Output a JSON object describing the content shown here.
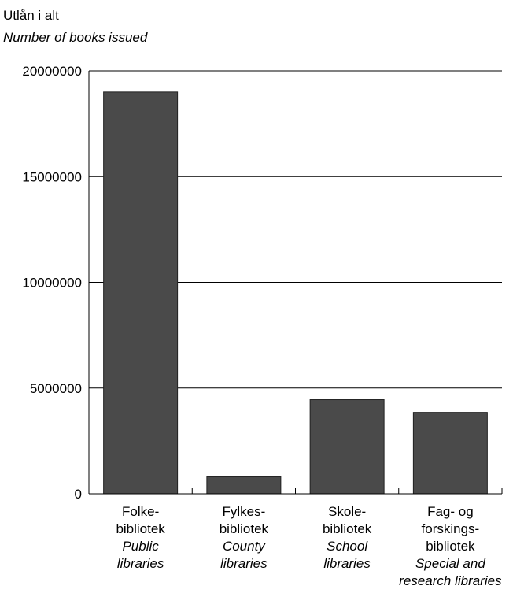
{
  "chart_data": {
    "type": "bar",
    "title_lines": [
      "Utlån i alt",
      "Number of books issued"
    ],
    "categories": [
      {
        "lines": [
          "Folke-",
          "bibliotek"
        ],
        "italic_lines": [
          "Public",
          "libraries"
        ]
      },
      {
        "lines": [
          "Fylkes-",
          "bibliotek"
        ],
        "italic_lines": [
          "County",
          "libraries"
        ]
      },
      {
        "lines": [
          "Skole-",
          "bibliotek"
        ],
        "italic_lines": [
          "School",
          "libraries"
        ]
      },
      {
        "lines": [
          "Fag- og",
          "forskings-",
          "bibliotek"
        ],
        "italic_lines": [
          "Special and",
          "research libraries"
        ]
      }
    ],
    "values": [
      19000000,
      800000,
      4450000,
      3850000
    ],
    "ylim": [
      0,
      20000000
    ],
    "yticks": [
      0,
      5000000,
      10000000,
      15000000,
      20000000
    ],
    "ytick_labels": [
      "0",
      "5000000",
      "10000000",
      "15000000",
      "20000000"
    ],
    "grid": true,
    "bar_color": "#4a4a4a",
    "axis_color": "#000000"
  }
}
